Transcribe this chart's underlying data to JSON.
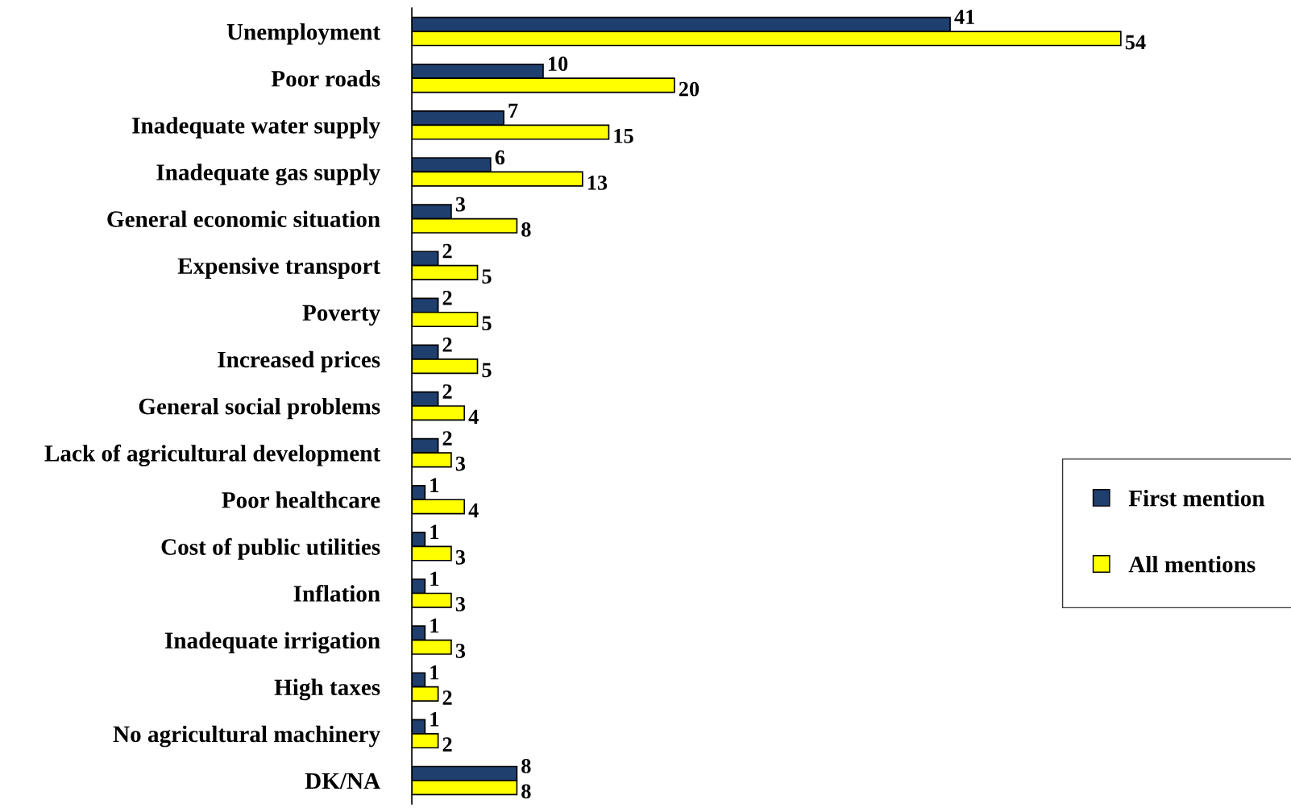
{
  "chart_data": {
    "type": "bar",
    "orientation": "horizontal",
    "data_labels": true,
    "grid": false,
    "legend": "right",
    "categories": [
      "Unemployment",
      "Poor roads",
      "Inadequate water supply",
      "Inadequate gas supply",
      "General economic situation",
      "Expensive transport",
      "Poverty",
      "Increased prices",
      "General social problems",
      "Lack of agricultural development",
      "Poor healthcare",
      "Cost of public utilities",
      "Inflation",
      "Inadequate irrigation",
      "High taxes",
      "No agricultural machinery",
      "DK/NA"
    ],
    "series": [
      {
        "name": "First mention",
        "color": "#1f3f6e",
        "values": [
          41,
          10,
          7,
          6,
          3,
          2,
          2,
          2,
          2,
          2,
          1,
          1,
          1,
          1,
          1,
          1,
          8
        ]
      },
      {
        "name": "All mentions",
        "color": "#ffff00",
        "values": [
          54,
          20,
          15,
          13,
          8,
          5,
          5,
          5,
          4,
          3,
          4,
          3,
          3,
          3,
          2,
          2,
          8
        ]
      }
    ]
  }
}
